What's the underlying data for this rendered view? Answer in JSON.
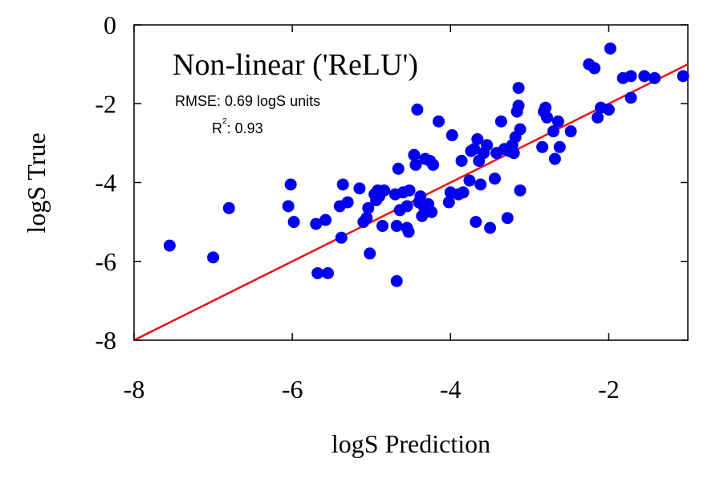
{
  "chart_data": {
    "type": "scatter",
    "title": "Non-linear ('ReLU')",
    "xlabel": "logS Prediction",
    "ylabel": "logS True",
    "xlim": [
      -8,
      -1
    ],
    "ylim": [
      -8,
      0
    ],
    "xticks": [
      -8,
      -6,
      -4,
      -2
    ],
    "yticks": [
      0,
      -2,
      -4,
      -6,
      -8
    ],
    "grid": false,
    "annotations": {
      "rmse": "RMSE: 0.69 logS units",
      "r2_label": "R",
      "r2_exp": "2",
      "r2_value": ": 0.93"
    },
    "colors": {
      "points": "#0000ee",
      "fit_line": "#ee1111",
      "axes": "#000000"
    },
    "fit_line": {
      "x": [
        -8,
        -1
      ],
      "y": [
        -8,
        -1
      ]
    },
    "points": [
      [
        -7.55,
        -5.6
      ],
      [
        -7.0,
        -5.9
      ],
      [
        -6.8,
        -4.65
      ],
      [
        -6.05,
        -4.6
      ],
      [
        -6.02,
        -4.05
      ],
      [
        -5.98,
        -5.0
      ],
      [
        -5.7,
        -5.05
      ],
      [
        -5.68,
        -6.3
      ],
      [
        -5.58,
        -4.95
      ],
      [
        -5.55,
        -6.3
      ],
      [
        -5.4,
        -4.6
      ],
      [
        -5.38,
        -5.4
      ],
      [
        -5.36,
        -4.05
      ],
      [
        -5.3,
        -4.5
      ],
      [
        -5.15,
        -4.15
      ],
      [
        -5.1,
        -5.0
      ],
      [
        -5.06,
        -4.9
      ],
      [
        -5.04,
        -4.65
      ],
      [
        -5.02,
        -5.8
      ],
      [
        -4.96,
        -4.3
      ],
      [
        -4.94,
        -4.45
      ],
      [
        -4.92,
        -4.2
      ],
      [
        -4.9,
        -4.35
      ],
      [
        -4.88,
        -4.25
      ],
      [
        -4.86,
        -5.1
      ],
      [
        -4.84,
        -4.2
      ],
      [
        -4.7,
        -4.3
      ],
      [
        -4.68,
        -5.1
      ],
      [
        -4.66,
        -3.65
      ],
      [
        -4.68,
        -6.5
      ],
      [
        -4.64,
        -4.7
      ],
      [
        -4.6,
        -4.25
      ],
      [
        -4.55,
        -5.15
      ],
      [
        -4.55,
        -4.6
      ],
      [
        -4.53,
        -5.25
      ],
      [
        -4.52,
        -4.2
      ],
      [
        -4.46,
        -3.3
      ],
      [
        -4.44,
        -3.55
      ],
      [
        -4.42,
        -2.15
      ],
      [
        -4.4,
        -4.5
      ],
      [
        -4.38,
        -4.35
      ],
      [
        -4.36,
        -4.85
      ],
      [
        -4.34,
        -4.6
      ],
      [
        -4.32,
        -3.4
      ],
      [
        -4.3,
        -4.7
      ],
      [
        -4.28,
        -4.55
      ],
      [
        -4.26,
        -3.45
      ],
      [
        -4.24,
        -4.75
      ],
      [
        -4.22,
        -3.55
      ],
      [
        -4.15,
        -2.45
      ],
      [
        -4.02,
        -4.5
      ],
      [
        -4.0,
        -4.25
      ],
      [
        -3.98,
        -2.8
      ],
      [
        -3.9,
        -4.3
      ],
      [
        -3.86,
        -3.45
      ],
      [
        -3.84,
        -4.25
      ],
      [
        -3.76,
        -3.95
      ],
      [
        -3.74,
        -3.2
      ],
      [
        -3.7,
        -3.15
      ],
      [
        -3.68,
        -5.0
      ],
      [
        -3.66,
        -2.9
      ],
      [
        -3.64,
        -3.45
      ],
      [
        -3.62,
        -4.05
      ],
      [
        -3.58,
        -3.25
      ],
      [
        -3.54,
        -3.05
      ],
      [
        -3.5,
        -5.15
      ],
      [
        -3.44,
        -3.9
      ],
      [
        -3.42,
        -3.25
      ],
      [
        -3.36,
        -2.45
      ],
      [
        -3.32,
        -3.15
      ],
      [
        -3.28,
        -4.9
      ],
      [
        -3.26,
        -3.2
      ],
      [
        -3.22,
        -3.05
      ],
      [
        -3.2,
        -3.25
      ],
      [
        -3.18,
        -2.85
      ],
      [
        -3.16,
        -2.2
      ],
      [
        -3.14,
        -2.05
      ],
      [
        -3.14,
        -1.6
      ],
      [
        -3.12,
        -4.2
      ],
      [
        -3.12,
        -2.65
      ],
      [
        -2.84,
        -3.1
      ],
      [
        -2.82,
        -2.2
      ],
      [
        -2.8,
        -2.1
      ],
      [
        -2.78,
        -2.35
      ],
      [
        -2.7,
        -2.7
      ],
      [
        -2.68,
        -3.4
      ],
      [
        -2.64,
        -2.45
      ],
      [
        -2.62,
        -3.1
      ],
      [
        -2.48,
        -2.7
      ],
      [
        -2.25,
        -1.0
      ],
      [
        -2.18,
        -1.1
      ],
      [
        -2.14,
        -2.35
      ],
      [
        -2.1,
        -2.1
      ],
      [
        -2.0,
        -2.15
      ],
      [
        -1.98,
        -0.6
      ],
      [
        -1.82,
        -1.35
      ],
      [
        -1.72,
        -1.3
      ],
      [
        -1.72,
        -1.85
      ],
      [
        -1.55,
        -1.3
      ],
      [
        -1.42,
        -1.35
      ],
      [
        -1.06,
        -1.3
      ]
    ]
  }
}
